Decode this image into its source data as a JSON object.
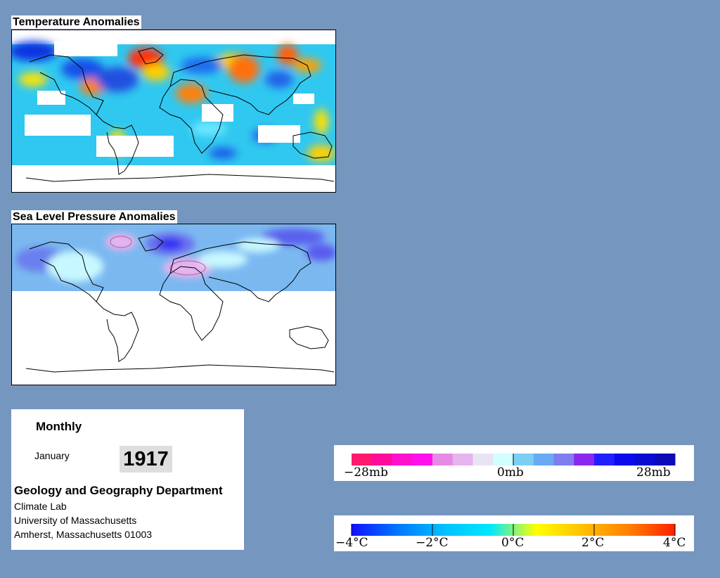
{
  "temperature_panel": {
    "title": "Temperature Anomalies"
  },
  "pressure_panel": {
    "title": "Sea Level Pressure Anomalies"
  },
  "info": {
    "period": "Monthly",
    "month": "January",
    "year": "1917",
    "department": "Geology and Geography Department",
    "line1": "Climate Lab",
    "line2": "University of Massachusetts",
    "line3": "Amherst, Massachusetts 01003"
  },
  "pressure_legend": {
    "labels": [
      "−28mb",
      "0mb",
      "28mb"
    ],
    "colors": [
      "#ff1a6e",
      "#ff0b9e",
      "#ff10cc",
      "#ff10ec",
      "#e68ae6",
      "#e6b4ee",
      "#e8e4f4",
      "#cfffff",
      "#7bcff5",
      "#6aaaf2",
      "#7e7ef0",
      "#8b28f0",
      "#2020ff",
      "#0a0aec",
      "#0a0ad2",
      "#0a0ab8"
    ]
  },
  "temperature_legend": {
    "labels": [
      "−4°C",
      "−2°C",
      "0°C",
      "2°C",
      "4°C"
    ],
    "colors": [
      "#1010ff",
      "#0078ff",
      "#00c0ff",
      "#00e8ff",
      "#ffff00",
      "#ffc000",
      "#ff8000",
      "#ff2000"
    ]
  },
  "colors": {
    "background": "#7596bf",
    "warm": "#e84010",
    "cold": "#1830e0",
    "neutral": "#40c8f0"
  }
}
